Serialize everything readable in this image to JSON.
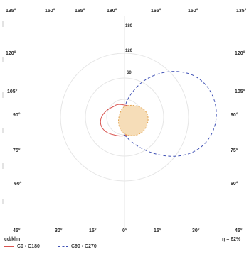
{
  "diagram": {
    "angle_labels_top": [
      "135°",
      "150°",
      "165°",
      "180°",
      "165°",
      "150°",
      "135°"
    ],
    "angle_labels_left": [
      "120°",
      "105°",
      "90°",
      "75°",
      "60°",
      "45°"
    ],
    "angle_labels_right": [
      "120°",
      "105°",
      "90°",
      "75°",
      "60°",
      "45°"
    ],
    "angle_labels_bottom": [
      "30°",
      "15°",
      "0°",
      "15°",
      "30°"
    ],
    "radial_labels": [
      "180",
      "120",
      "60"
    ],
    "unit": "cd/klm",
    "efficiency": "η = 62%",
    "legend": [
      {
        "name": "C0 - C180",
        "style": "solid",
        "color": "#d9534f"
      },
      {
        "name": "C90 - C270",
        "style": "dashed",
        "color": "#3f51b5"
      }
    ],
    "colors": {
      "grid": "#e6e6e6",
      "c0": "#d9534f",
      "c90": "#3f51b5",
      "lamp_fill": "#f6ddb8",
      "lamp_stroke": "#e3a34f"
    }
  }
}
